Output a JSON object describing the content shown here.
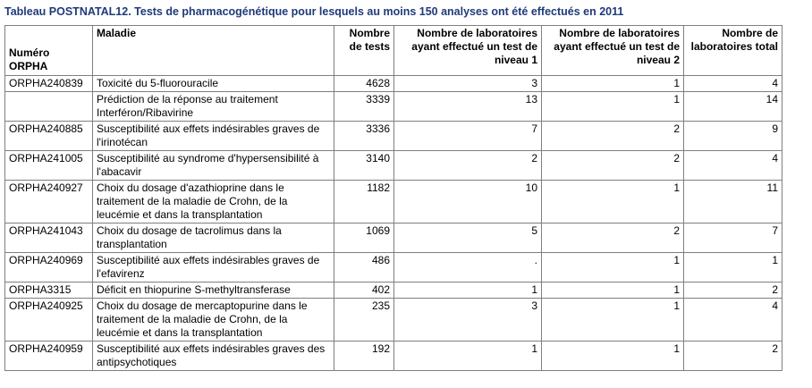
{
  "title": "Tableau POSTNATAL12. Tests de pharmacogénétique pour lesquels au moins 150 analyses ont été effectués en 2011",
  "headers": [
    "Numéro ORPHA",
    "Maladie",
    "Nombre de tests",
    "Nombre de laboratoires ayant effectué un test de niveau 1",
    "Nombre de laboratoires ayant effectué un test de niveau 2",
    "Nombre de laboratoires total"
  ],
  "rows": [
    [
      "ORPHA240839",
      "Toxicité du 5-fluorouracile",
      "4628",
      "3",
      "1",
      "4"
    ],
    [
      "",
      "Prédiction de la réponse au traitement Interféron/Ribavirine",
      "3339",
      "13",
      "1",
      "14"
    ],
    [
      "ORPHA240885",
      "Susceptibilité aux effets indésirables graves de l'irinotécan",
      "3336",
      "7",
      "2",
      "9"
    ],
    [
      "ORPHA241005",
      "Susceptibilité au syndrome d'hypersensibilité à l'abacavir",
      "3140",
      "2",
      "2",
      "4"
    ],
    [
      "ORPHA240927",
      "Choix du dosage d'azathioprine dans le traitement de la maladie de Crohn, de la leucémie et dans la transplantation",
      "1182",
      "10",
      "1",
      "11"
    ],
    [
      "ORPHA241043",
      "Choix du dosage de tacrolimus dans la transplantation",
      "1069",
      "5",
      "2",
      "7"
    ],
    [
      "ORPHA240969",
      "Susceptibilité aux effets indésirables graves de l'efavirenz",
      "486",
      ".",
      "1",
      "1"
    ],
    [
      "ORPHA3315",
      "Déficit en thiopurine S-methyltransferase",
      "402",
      "1",
      "1",
      "2"
    ],
    [
      "ORPHA240925",
      "Choix du dosage de mercaptopurine dans le traitement de la maladie de Crohn, de la leucémie et dans la transplantation",
      "235",
      "3",
      "1",
      "4"
    ],
    [
      "ORPHA240959",
      "Susceptibilité aux effets indésirables graves des antipsychotiques",
      "192",
      "1",
      "1",
      "2"
    ]
  ]
}
